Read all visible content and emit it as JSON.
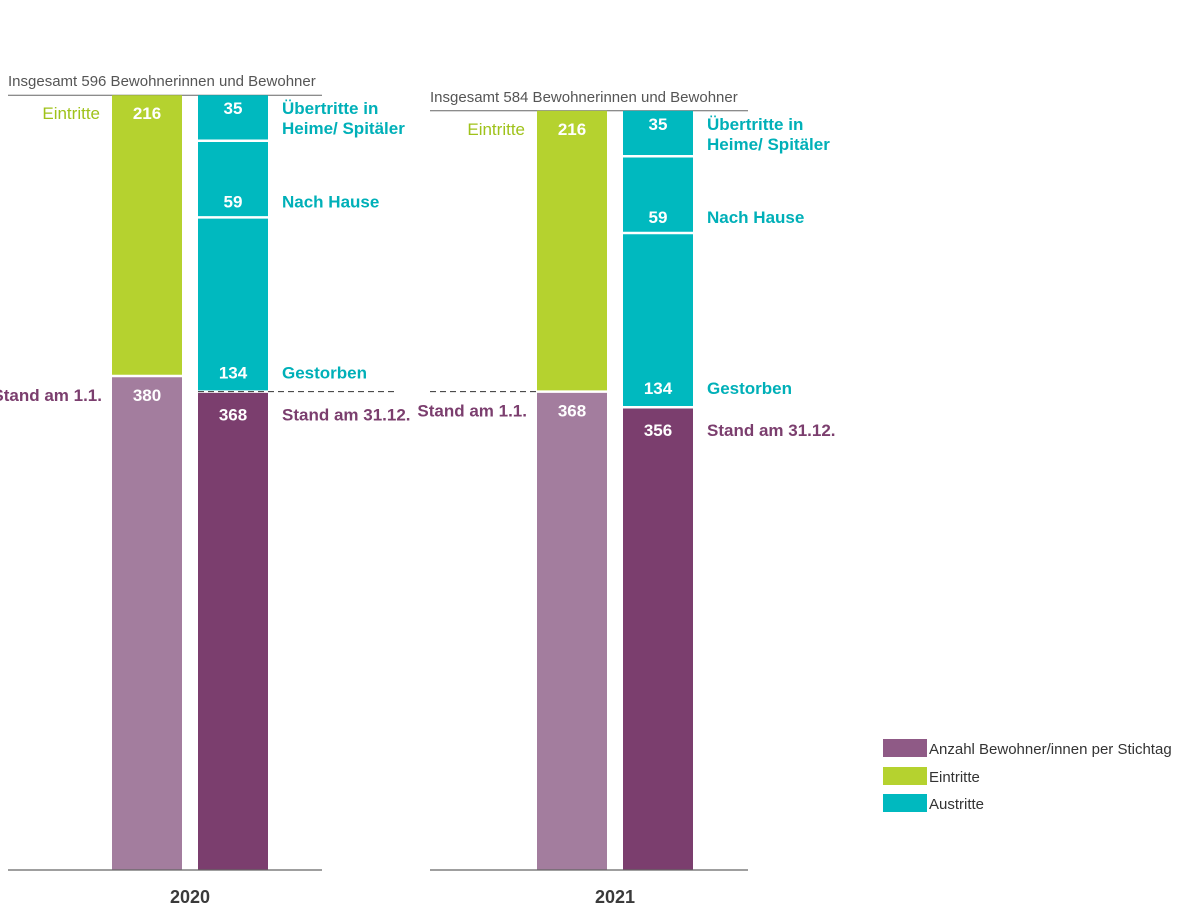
{
  "chart_data": {
    "type": "bar",
    "stacked": true,
    "colors": {
      "stand_start": "#a37d9e",
      "stand_end": "#7b3e6e",
      "eintritte": "#b5d22f",
      "austritte": "#00b9bf"
    },
    "legend": {
      "placement": "bottom-right",
      "items": [
        {
          "label": "Anzahl Bewohner/innen per Stichtag",
          "color": "#8f5a86"
        },
        {
          "label": "Eintritte",
          "color": "#b5d22f"
        },
        {
          "label": "Austritte",
          "color": "#00b9bf"
        }
      ]
    },
    "labels": {
      "eintritte": "Eintritte",
      "uebertritte_line1": "Übertritte in",
      "uebertritte_line2": "Heime/ Spitäler",
      "nach_hause": "Nach Hause",
      "gestorben": "Gestorben",
      "stand_start": "Stand am 1.1.",
      "stand_end": "Stand am 31.12."
    },
    "years": [
      {
        "year": "2020",
        "total_label": "Insgesamt 596 Bewohnerinnen und Bewohner",
        "stand_start": 380,
        "eintritte": 216,
        "stand_end": 368,
        "gestorben": 134,
        "nach_hause": 59,
        "uebertritte": 35
      },
      {
        "year": "2021",
        "total_label": "Insgesamt 584 Bewohnerinnen und Bewohner",
        "stand_start": 368,
        "eintritte": 216,
        "stand_end": 356,
        "gestorben": 134,
        "nach_hause": 59,
        "uebertritte": 35
      }
    ]
  }
}
